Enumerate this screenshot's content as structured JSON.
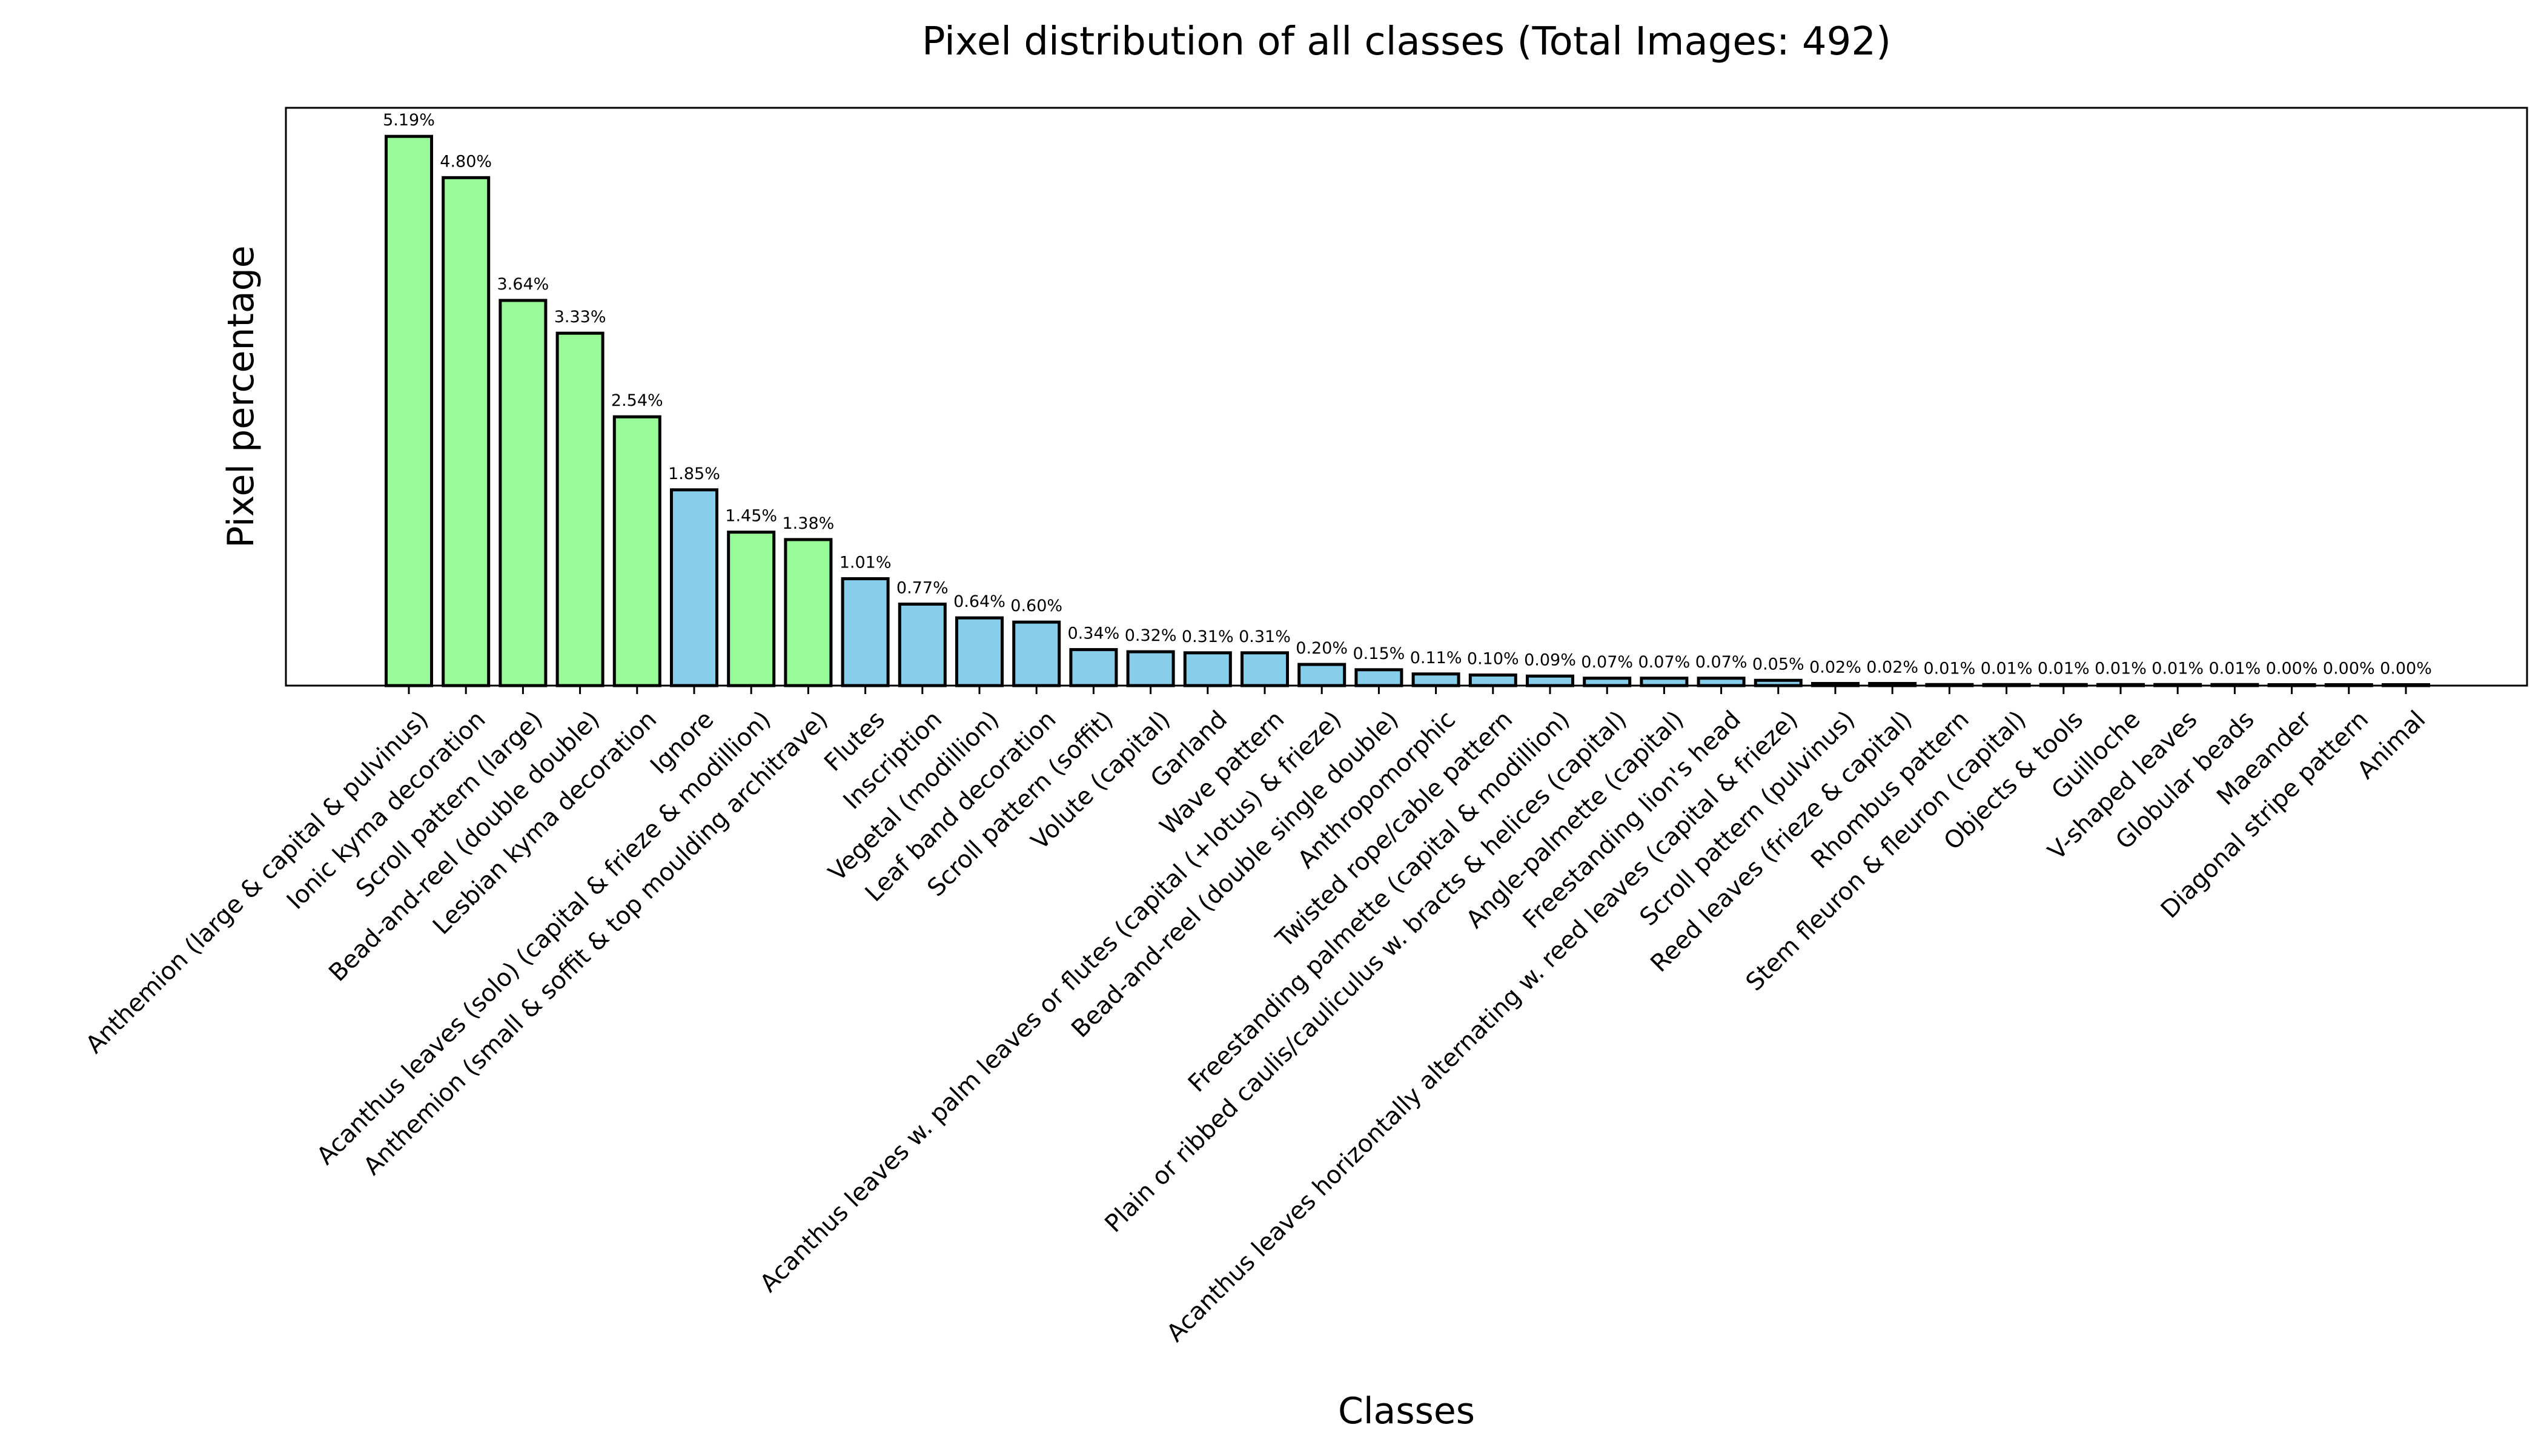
{
  "chart_data": {
    "type": "bar",
    "title": "Pixel distribution of all classes (Total Images: 492)",
    "xlabel": "Classes",
    "ylabel": "Pixel percentage",
    "ylim": [
      0,
      5.46
    ],
    "grid": false,
    "legend": "none",
    "colors": {
      "green": "#98fb98",
      "blue": "#87ceeb",
      "edge": "#000000"
    },
    "bars": [
      {
        "category": "Anthemion (large & capital & pulvinus)",
        "value": 5.19,
        "label": "5.19%",
        "color": "green"
      },
      {
        "category": "Ionic kyma decoration",
        "value": 4.8,
        "label": "4.80%",
        "color": "green"
      },
      {
        "category": "Scroll pattern (large)",
        "value": 3.64,
        "label": "3.64%",
        "color": "green"
      },
      {
        "category": "Bead-and-reel (double double)",
        "value": 3.33,
        "label": "3.33%",
        "color": "green"
      },
      {
        "category": "Lesbian kyma decoration",
        "value": 2.54,
        "label": "2.54%",
        "color": "green"
      },
      {
        "category": "Ignore",
        "value": 1.85,
        "label": "1.85%",
        "color": "blue"
      },
      {
        "category": "Acanthus leaves (solo) (capital & frieze & modillion)",
        "value": 1.45,
        "label": "1.45%",
        "color": "green"
      },
      {
        "category": "Anthemion (small & soffit & top moulding architrave)",
        "value": 1.38,
        "label": "1.38%",
        "color": "green"
      },
      {
        "category": "Flutes",
        "value": 1.01,
        "label": "1.01%",
        "color": "blue"
      },
      {
        "category": "Inscription",
        "value": 0.77,
        "label": "0.77%",
        "color": "blue"
      },
      {
        "category": "Vegetal (modillion)",
        "value": 0.64,
        "label": "0.64%",
        "color": "blue"
      },
      {
        "category": "Leaf band decoration",
        "value": 0.6,
        "label": "0.60%",
        "color": "blue"
      },
      {
        "category": "Scroll pattern (soffit)",
        "value": 0.34,
        "label": "0.34%",
        "color": "blue"
      },
      {
        "category": "Volute (capital)",
        "value": 0.32,
        "label": "0.32%",
        "color": "blue"
      },
      {
        "category": "Garland",
        "value": 0.31,
        "label": "0.31%",
        "color": "blue"
      },
      {
        "category": "Wave pattern",
        "value": 0.31,
        "label": "0.31%",
        "color": "blue"
      },
      {
        "category": "Acanthus leaves w. palm leaves or flutes (capital (+lotus) & frieze)",
        "value": 0.2,
        "label": "0.20%",
        "color": "blue"
      },
      {
        "category": "Bead-and-reel (double single double)",
        "value": 0.15,
        "label": "0.15%",
        "color": "blue"
      },
      {
        "category": "Anthropomorphic",
        "value": 0.11,
        "label": "0.11%",
        "color": "blue"
      },
      {
        "category": "Twisted rope/cable pattern",
        "value": 0.1,
        "label": "0.10%",
        "color": "blue"
      },
      {
        "category": "Freestanding palmette (capital & modillion)",
        "value": 0.09,
        "label": "0.09%",
        "color": "blue"
      },
      {
        "category": "Plain or ribbed caulis/cauliculus w. bracts & helices (capital)",
        "value": 0.07,
        "label": "0.07%",
        "color": "blue"
      },
      {
        "category": "Angle-palmette (capital)",
        "value": 0.07,
        "label": "0.07%",
        "color": "blue"
      },
      {
        "category": "Freestanding lion's head",
        "value": 0.07,
        "label": "0.07%",
        "color": "blue"
      },
      {
        "category": "Acanthus leaves horizontally alternating w. reed leaves (capital & frieze)",
        "value": 0.05,
        "label": "0.05%",
        "color": "blue"
      },
      {
        "category": "Scroll pattern (pulvinus)",
        "value": 0.02,
        "label": "0.02%",
        "color": "blue"
      },
      {
        "category": "Reed leaves (frieze & capital)",
        "value": 0.02,
        "label": "0.02%",
        "color": "blue"
      },
      {
        "category": "Rhombus pattern",
        "value": 0.01,
        "label": "0.01%",
        "color": "blue"
      },
      {
        "category": "Stem fleuron & fleuron (capital)",
        "value": 0.01,
        "label": "0.01%",
        "color": "blue"
      },
      {
        "category": "Objects & tools",
        "value": 0.01,
        "label": "0.01%",
        "color": "blue"
      },
      {
        "category": "Guilloche",
        "value": 0.01,
        "label": "0.01%",
        "color": "blue"
      },
      {
        "category": "V-shaped leaves",
        "value": 0.01,
        "label": "0.01%",
        "color": "blue"
      },
      {
        "category": "Globular beads",
        "value": 0.01,
        "label": "0.01%",
        "color": "blue"
      },
      {
        "category": "Maeander",
        "value": 0.0,
        "label": "0.00%",
        "color": "blue"
      },
      {
        "category": "Diagonal stripe pattern",
        "value": 0.0,
        "label": "0.00%",
        "color": "blue"
      },
      {
        "category": "Animal",
        "value": 0.0,
        "label": "0.00%",
        "color": "blue"
      }
    ]
  }
}
